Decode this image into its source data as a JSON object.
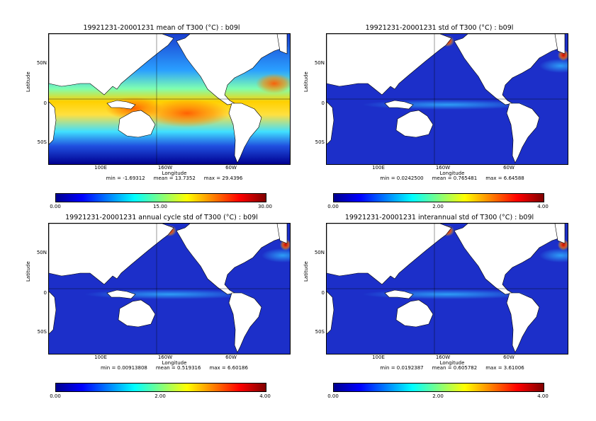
{
  "panels": [
    {
      "title": "19921231-20001231 mean of T300 (°C) : b09l",
      "ylabel": "Latitude",
      "xlabel": "Longitude",
      "yticks": [
        "50N",
        "0",
        "50S"
      ],
      "xticks": [
        "100E",
        "160W",
        "60W"
      ],
      "stats": {
        "min": "min = -1.69312",
        "mean": "mean = 13.7352",
        "max": "max = 29.4396"
      },
      "colorbar": {
        "min": "0.00",
        "mid": "15.00",
        "max": "30.00"
      },
      "field": "mean"
    },
    {
      "title": "19921231-20001231 std of T300 (°C) : b09l",
      "ylabel": "Latitude",
      "xlabel": "Longitude",
      "yticks": [
        "50N",
        "0",
        "50S"
      ],
      "xticks": [
        "100E",
        "160W",
        "60W"
      ],
      "stats": {
        "min": "min = 0.0242500",
        "mean": "mean = 0.765481",
        "max": "max = 6.64588"
      },
      "colorbar": {
        "min": "0.00",
        "mid": "2.00",
        "max": "4.00"
      },
      "field": "std"
    },
    {
      "title": "19921231-20001231 annual cycle std of T300 (°C) : b09l",
      "ylabel": "Latitude",
      "xlabel": "Longitude",
      "yticks": [
        "50N",
        "0",
        "50S"
      ],
      "xticks": [
        "100E",
        "160W",
        "60W"
      ],
      "stats": {
        "min": "min = 0.00913808",
        "mean": "mean = 0.519316",
        "max": "max = 6.60186"
      },
      "colorbar": {
        "min": "0.00",
        "mid": "2.00",
        "max": "4.00"
      },
      "field": "annual"
    },
    {
      "title": "19921231-20001231 interannual std of T300 (°C) : b09l",
      "ylabel": "Latitude",
      "xlabel": "Longitude",
      "yticks": [
        "50N",
        "0",
        "50S"
      ],
      "xticks": [
        "100E",
        "160W",
        "60W"
      ],
      "stats": {
        "min": "min = 0.0192387",
        "mean": "mean = 0.605782",
        "max": "max = 3.61006"
      },
      "colorbar": {
        "min": "0.00",
        "mid": "2.00",
        "max": "4.00"
      },
      "field": "interannual"
    }
  ],
  "colors": {
    "ocean_low": "#1c2fc9",
    "land": "#ffffff",
    "coast": "#000000"
  }
}
